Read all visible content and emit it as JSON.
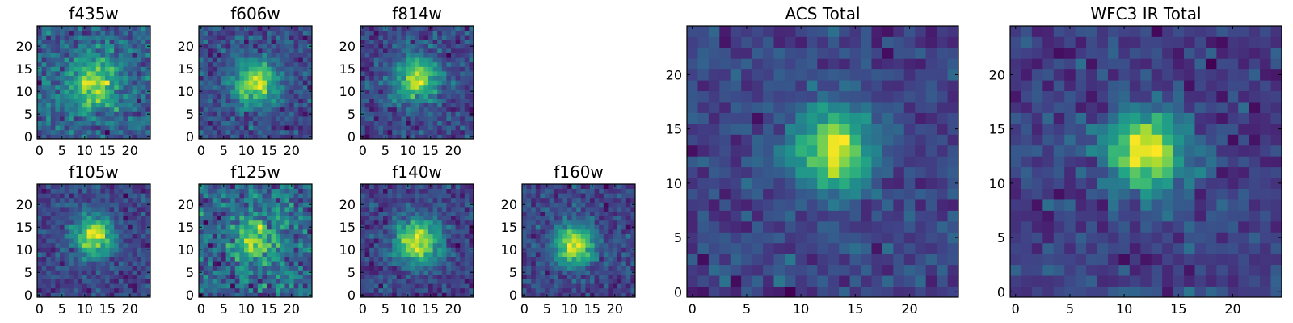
{
  "chart_data": [
    {
      "type": "heatmap",
      "title": "f435w",
      "size": 25,
      "x_ticks": [
        0,
        5,
        10,
        15,
        20
      ],
      "y_ticks": [
        0,
        5,
        10,
        15,
        20
      ],
      "xlim": [
        0,
        25
      ],
      "ylim": [
        0,
        25
      ],
      "colormap": "viridis",
      "source_peak": [
        12,
        12
      ],
      "source_width": 4.0,
      "source_strength": 0.45,
      "noise": 0.55,
      "seed": 11
    },
    {
      "type": "heatmap",
      "title": "f606w",
      "size": 25,
      "x_ticks": [
        0,
        5,
        10,
        15,
        20
      ],
      "y_ticks": [
        0,
        5,
        10,
        15,
        20
      ],
      "xlim": [
        0,
        25
      ],
      "ylim": [
        0,
        25
      ],
      "colormap": "viridis",
      "source_peak": [
        12,
        12
      ],
      "source_width": 3.5,
      "source_strength": 0.6,
      "noise": 0.5,
      "seed": 23
    },
    {
      "type": "heatmap",
      "title": "f814w",
      "size": 25,
      "x_ticks": [
        0,
        5,
        10,
        15,
        20
      ],
      "y_ticks": [
        0,
        5,
        10,
        15,
        20
      ],
      "xlim": [
        0,
        25
      ],
      "ylim": [
        0,
        25
      ],
      "colormap": "viridis",
      "source_peak": [
        12,
        13
      ],
      "source_width": 3.5,
      "source_strength": 0.6,
      "noise": 0.5,
      "seed": 37
    },
    {
      "type": "heatmap",
      "title": "f105w",
      "size": 25,
      "x_ticks": [
        0,
        5,
        10,
        15,
        20
      ],
      "y_ticks": [
        0,
        5,
        10,
        15,
        20
      ],
      "xlim": [
        0,
        25
      ],
      "ylim": [
        0,
        25
      ],
      "colormap": "viridis",
      "source_peak": [
        12,
        13
      ],
      "source_width": 3.0,
      "source_strength": 0.7,
      "noise": 0.45,
      "seed": 41
    },
    {
      "type": "heatmap",
      "title": "f125w",
      "size": 25,
      "x_ticks": [
        0,
        5,
        10,
        15,
        20
      ],
      "y_ticks": [
        0,
        5,
        10,
        15,
        20
      ],
      "xlim": [
        0,
        25
      ],
      "ylim": [
        0,
        25
      ],
      "colormap": "viridis",
      "source_peak": [
        12,
        12
      ],
      "source_width": 3.0,
      "source_strength": 0.4,
      "noise": 0.6,
      "seed": 53
    },
    {
      "type": "heatmap",
      "title": "f140w",
      "size": 25,
      "x_ticks": [
        0,
        5,
        10,
        15,
        20
      ],
      "y_ticks": [
        0,
        5,
        10,
        15,
        20
      ],
      "xlim": [
        0,
        25
      ],
      "ylim": [
        0,
        25
      ],
      "colormap": "viridis",
      "source_peak": [
        12,
        12
      ],
      "source_width": 3.5,
      "source_strength": 0.7,
      "noise": 0.45,
      "seed": 67
    },
    {
      "type": "heatmap",
      "title": "f160w",
      "size": 25,
      "x_ticks": [
        0,
        5,
        10,
        15,
        20
      ],
      "y_ticks": [
        0,
        5,
        10,
        15,
        20
      ],
      "xlim": [
        0,
        25
      ],
      "ylim": [
        0,
        25
      ],
      "colormap": "viridis",
      "source_peak": [
        11,
        11
      ],
      "source_width": 3.0,
      "source_strength": 0.7,
      "noise": 0.45,
      "seed": 79
    },
    {
      "type": "heatmap",
      "title": "ACS Total",
      "size": 25,
      "x_ticks": [
        0,
        5,
        10,
        15,
        20
      ],
      "y_ticks": [
        0,
        5,
        10,
        15,
        20
      ],
      "xlim": [
        0,
        25
      ],
      "ylim": [
        0,
        25
      ],
      "colormap": "viridis",
      "source_peak": [
        13,
        13
      ],
      "source_width": 2.5,
      "source_strength": 0.7,
      "noise": 0.4,
      "seed": 97
    },
    {
      "type": "heatmap",
      "title": "WFC3 IR Total",
      "size": 25,
      "x_ticks": [
        0,
        5,
        10,
        15,
        20
      ],
      "y_ticks": [
        0,
        5,
        10,
        15,
        20
      ],
      "xlim": [
        0,
        25
      ],
      "ylim": [
        0,
        25
      ],
      "colormap": "viridis",
      "source_peak": [
        12,
        13
      ],
      "source_width": 2.5,
      "source_strength": 0.75,
      "noise": 0.4,
      "seed": 103
    }
  ]
}
